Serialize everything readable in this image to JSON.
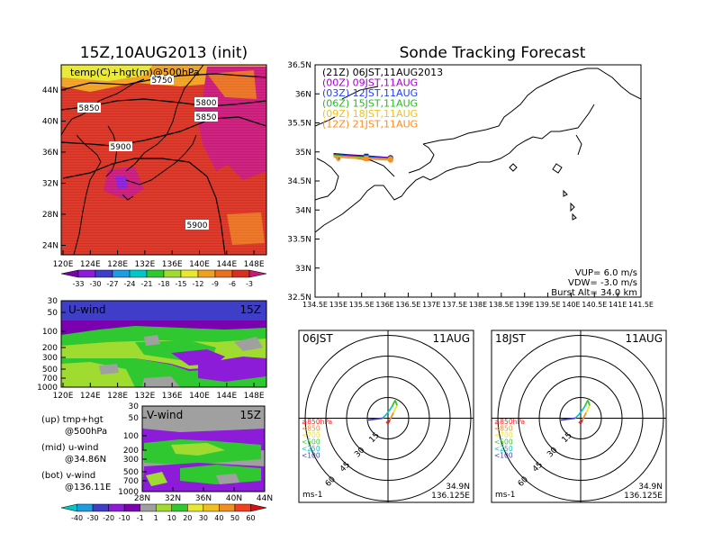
{
  "left_title": "15Z,10AUG2013 (init)",
  "right_title": "Sonde Tracking Forecast",
  "map_panel": {
    "label": "temp(C)+hgt(m)@500hPa",
    "y_ticks": [
      "44N",
      "40N",
      "36N",
      "32N",
      "28N",
      "24N"
    ],
    "x_ticks": [
      "120E",
      "124E",
      "128E",
      "132E",
      "136E",
      "140E",
      "144E",
      "148E"
    ],
    "contour_labels": [
      "5750",
      "5800",
      "5850",
      "5850",
      "5900",
      "5900"
    ],
    "colorbar_ticks": [
      "-33",
      "-30",
      "-27",
      "-24",
      "-21",
      "-18",
      "-15",
      "-12",
      "-9",
      "-6",
      "-3"
    ]
  },
  "u_panel": {
    "label": "U-wind",
    "time": "15Z",
    "y_ticks": [
      "30",
      "50",
      "100",
      "200",
      "300",
      "500",
      "700",
      "1000"
    ],
    "x_ticks": [
      "120E",
      "124E",
      "128E",
      "132E",
      "136E",
      "140E",
      "144E",
      "148E"
    ]
  },
  "v_panel": {
    "label": "V-wind",
    "time": "15Z",
    "y_ticks": [
      "30",
      "50",
      "100",
      "200",
      "300",
      "500",
      "700",
      "1000"
    ],
    "x_ticks": [
      "28N",
      "32N",
      "36N",
      "40N",
      "44N"
    ]
  },
  "notes": {
    "up_1": "(up) tmp+hgt",
    "up_2": "@500hPa",
    "mid_1": "(mid) u-wind",
    "mid_2": "@34.86N",
    "bot_1": "(bot) v-wind",
    "bot_2": "@136.11E"
  },
  "wind_colorbar_ticks": [
    "-40",
    "-30",
    "-20",
    "-10",
    "-1",
    "1",
    "10",
    "20",
    "30",
    "40",
    "50",
    "60"
  ],
  "track_panel": {
    "legend": [
      {
        "text": "(21Z) 06JST,11AUG2013",
        "color": "#000000"
      },
      {
        "text": "(00Z) 09JST,11AUG",
        "color": "#a000c8"
      },
      {
        "text": "(03Z) 12JST,11AUG",
        "color": "#2040ff"
      },
      {
        "text": "(06Z) 15JST,11AUG",
        "color": "#20c020"
      },
      {
        "text": "(09Z) 18JST,11AUG",
        "color": "#f0c020"
      },
      {
        "text": "(12Z) 21JST,11AUG",
        "color": "#ff8c20"
      }
    ],
    "y_ticks": [
      "36.5N",
      "36N",
      "35.5N",
      "35N",
      "34.5N",
      "34N",
      "33.5N",
      "33N",
      "32.5N"
    ],
    "x_ticks": [
      "134.5E",
      "135E",
      "135.5E",
      "136E",
      "136.5E",
      "137E",
      "137.5E",
      "138E",
      "138.5E",
      "139E",
      "139.5E",
      "140E",
      "140.5E",
      "141E",
      "141.5E"
    ],
    "vup": "VUP=  6.0  m/s",
    "vdw": "VDW= -3.0  m/s",
    "burst": "Burst Alt=  34.0  km"
  },
  "hodographs": [
    {
      "time": "06JST",
      "date": "11AUG",
      "lat": "34.9N",
      "lon": "136.125E",
      "unit": "ms-1",
      "rings": [
        "15",
        "30",
        "45",
        "60"
      ],
      "levels": [
        "≥850hPa",
        "<850",
        "<700",
        "<500",
        "<250",
        "<100"
      ]
    },
    {
      "time": "18JST",
      "date": "11AUG",
      "lat": "34.9N",
      "lon": "136.125E",
      "unit": "ms-1",
      "rings": [
        "15",
        "30",
        "45",
        "60"
      ],
      "levels": [
        "≥850hPa",
        "<850",
        "<700",
        "<500",
        "<250",
        "<100"
      ]
    }
  ],
  "colors": {
    "temp_scale": [
      "#7a00b0",
      "#8c1cd8",
      "#3e3ec8",
      "#1f9be0",
      "#00c8c8",
      "#30c830",
      "#a0dc30",
      "#e8e830",
      "#f0a020",
      "#e87020",
      "#d83020",
      "#c81878"
    ],
    "wind_scale": [
      "#00c8c8",
      "#1f9be0",
      "#3e3ec8",
      "#8c1cd8",
      "#7a00b0",
      "#a0a0a0",
      "#a0dc30",
      "#30c830",
      "#e8e830",
      "#f0c020",
      "#f09020",
      "#f04020",
      "#d81010"
    ]
  },
  "chart_data": [
    {
      "type": "heatmap",
      "title": "15Z,10AUG2013 (init)",
      "label": "temp(C)+hgt(m)@500hPa",
      "colorbar": [
        -33,
        -30,
        -27,
        -24,
        -21,
        -18,
        -15,
        -12,
        -9,
        -6,
        -3
      ],
      "xlim": [
        120,
        150
      ],
      "ylim": [
        22,
        47
      ],
      "contours": [
        5750,
        5800,
        5850,
        5900
      ]
    },
    {
      "type": "heatmap",
      "label": "U-wind",
      "time": "15Z",
      "section_lat": "34.86N",
      "xlim": [
        120,
        150
      ],
      "ylevels": [
        30,
        50,
        100,
        200,
        300,
        500,
        700,
        1000
      ]
    },
    {
      "type": "heatmap",
      "label": "V-wind",
      "time": "15Z",
      "section_lon": "136.11E",
      "xlim": [
        28,
        44
      ],
      "ylevels": [
        30,
        50,
        100,
        200,
        300,
        500,
        700,
        1000
      ],
      "colorbar": [
        -40,
        -30,
        -20,
        -10,
        -1,
        1,
        10,
        20,
        30,
        40,
        50,
        60
      ]
    },
    {
      "type": "line",
      "title": "Sonde Tracking Forecast",
      "xlim": [
        134.5,
        141.5
      ],
      "ylim": [
        32.5,
        36.5
      ],
      "series": [
        {
          "name": "(21Z) 06JST,11AUG2013",
          "x": [
            136.12,
            135.6,
            135.2,
            134.9,
            135.0
          ],
          "y": [
            34.9,
            34.93,
            34.95,
            34.97,
            34.93
          ]
        },
        {
          "name": "(00Z) 09JST,11AUG",
          "x": [
            136.12,
            135.6,
            135.2,
            134.9,
            135.0
          ],
          "y": [
            34.9,
            34.92,
            34.94,
            34.96,
            34.92
          ]
        },
        {
          "name": "(03Z) 12JST,11AUG",
          "x": [
            136.12,
            135.6,
            135.2,
            134.9,
            135.0
          ],
          "y": [
            34.89,
            34.91,
            34.93,
            34.95,
            34.91
          ]
        },
        {
          "name": "(06Z) 15JST,11AUG",
          "x": [
            136.12,
            135.6,
            135.2,
            134.9,
            135.0
          ],
          "y": [
            34.88,
            34.9,
            34.92,
            34.94,
            34.9
          ]
        },
        {
          "name": "(09Z) 18JST,11AUG",
          "x": [
            136.12,
            135.6,
            135.2,
            134.9,
            135.0
          ],
          "y": [
            34.87,
            34.89,
            34.91,
            34.93,
            34.89
          ]
        },
        {
          "name": "(12Z) 21JST,11AUG",
          "x": [
            136.12,
            135.6,
            135.2,
            134.9,
            135.0
          ],
          "y": [
            34.86,
            34.88,
            34.9,
            34.92,
            34.88
          ]
        }
      ]
    }
  ]
}
